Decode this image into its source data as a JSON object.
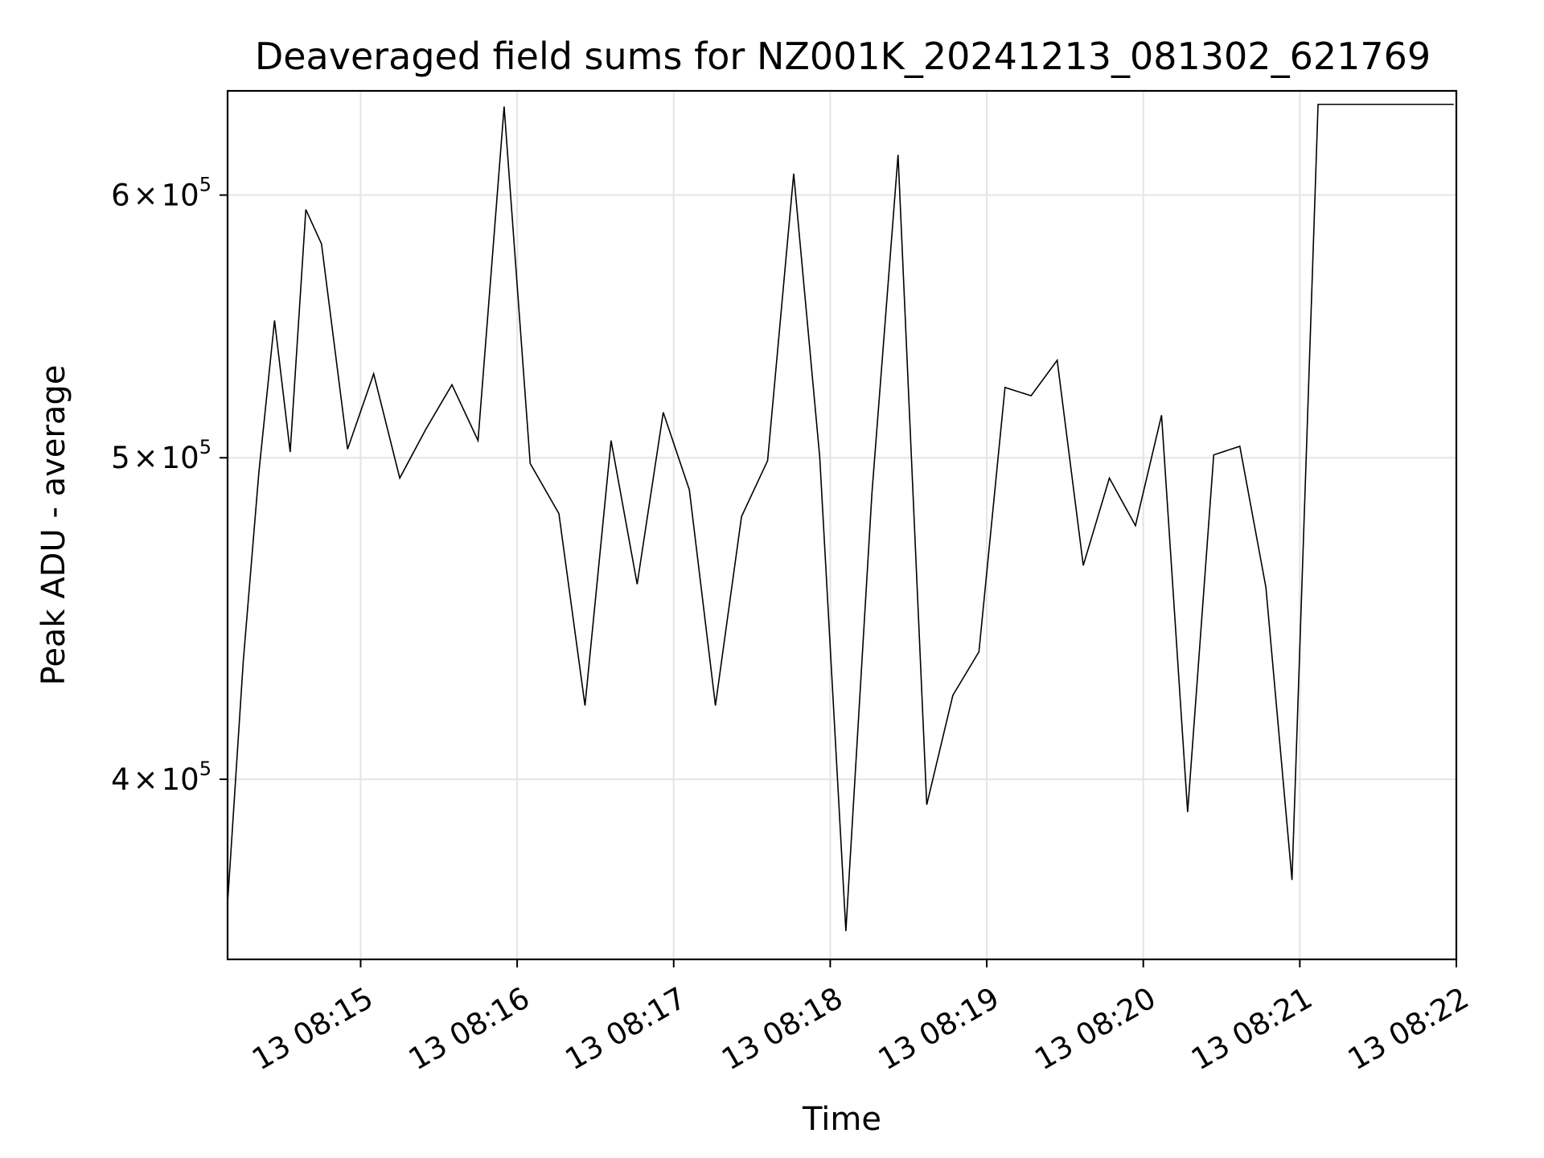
{
  "chart_data": {
    "type": "line",
    "title": "Deaveraged field sums for NZ001K_20241213_081302_621769",
    "xlabel": "Time",
    "ylabel": "Peak ADU - average",
    "yscale": "log",
    "grid": true,
    "line_color": "#000000",
    "grid_color": "#e6e6e6",
    "x_tick_labels": [
      "13 08:15",
      "13 08:16",
      "13 08:17",
      "13 08:18",
      "13 08:19",
      "13 08:20",
      "13 08:21",
      "13 08:22"
    ],
    "y_ticks": [
      {
        "value": 400000,
        "mantissa": "4",
        "exponent": "5"
      },
      {
        "value": 500000,
        "mantissa": "5",
        "exponent": "5"
      },
      {
        "value": 600000,
        "mantissa": "6",
        "exponent": "5"
      }
    ],
    "x_range": [
      "2024-12-13 08:14:09",
      "2024-12-13 08:22:00"
    ],
    "y_range": [
      353000,
      645000
    ],
    "x_tick_values": [
      "2024-12-13 08:15:00",
      "2024-12-13 08:16:00",
      "2024-12-13 08:17:00",
      "2024-12-13 08:18:00",
      "2024-12-13 08:19:00",
      "2024-12-13 08:20:00",
      "2024-12-13 08:21:00",
      "2024-12-13 08:22:00"
    ],
    "x": [
      "2024-12-13 08:14:09",
      "2024-12-13 08:14:15",
      "2024-12-13 08:14:21",
      "2024-12-13 08:14:27",
      "2024-12-13 08:14:33",
      "2024-12-13 08:14:39",
      "2024-12-13 08:14:45",
      "2024-12-13 08:14:55",
      "2024-12-13 08:15:05",
      "2024-12-13 08:15:15",
      "2024-12-13 08:15:25",
      "2024-12-13 08:15:35",
      "2024-12-13 08:15:45",
      "2024-12-13 08:15:55",
      "2024-12-13 08:16:05",
      "2024-12-13 08:16:16",
      "2024-12-13 08:16:26",
      "2024-12-13 08:16:36",
      "2024-12-13 08:16:46",
      "2024-12-13 08:16:56",
      "2024-12-13 08:17:06",
      "2024-12-13 08:17:16",
      "2024-12-13 08:17:26",
      "2024-12-13 08:17:36",
      "2024-12-13 08:17:46",
      "2024-12-13 08:17:56",
      "2024-12-13 08:18:06",
      "2024-12-13 08:18:16",
      "2024-12-13 08:18:26",
      "2024-12-13 08:18:37",
      "2024-12-13 08:18:47",
      "2024-12-13 08:18:57",
      "2024-12-13 08:19:07",
      "2024-12-13 08:19:17",
      "2024-12-13 08:19:27",
      "2024-12-13 08:19:37",
      "2024-12-13 08:19:47",
      "2024-12-13 08:19:57",
      "2024-12-13 08:20:07",
      "2024-12-13 08:20:17",
      "2024-12-13 08:20:27",
      "2024-12-13 08:20:37",
      "2024-12-13 08:20:47",
      "2024-12-13 08:20:57",
      "2024-12-13 08:21:07",
      "2024-12-13 08:21:18",
      "2024-12-13 08:21:28",
      "2024-12-13 08:21:59"
    ],
    "y": [
      367000,
      434000,
      495000,
      550000,
      502000,
      594000,
      580000,
      503000,
      530000,
      493000,
      510000,
      526000,
      506000,
      638000,
      498000,
      481000,
      421000,
      506000,
      458000,
      516000,
      489000,
      421000,
      480000,
      499000,
      609000,
      500000,
      360000,
      488000,
      617000,
      393000,
      424000,
      437000,
      525000,
      522000,
      535000,
      464000,
      493000,
      477000,
      515000,
      391000,
      501000,
      504000,
      457000,
      373000,
      639000,
      639000,
      639000,
      639000
    ]
  }
}
